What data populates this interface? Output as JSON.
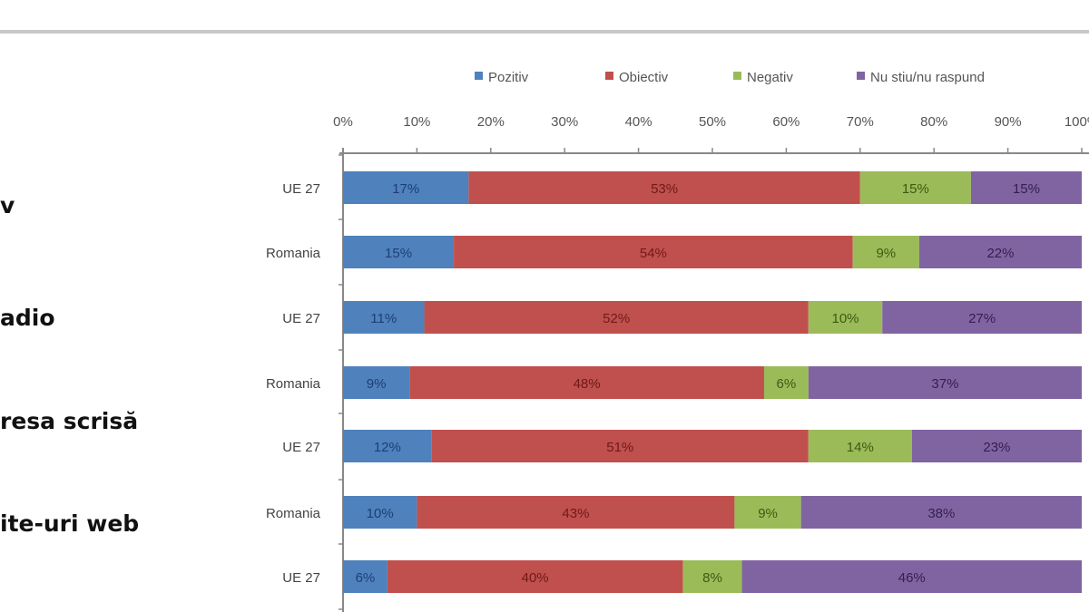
{
  "group_labels": [
    "v",
    "adio",
    "resa scrisă",
    "ite-uri web"
  ],
  "chart_data": {
    "type": "bar",
    "orientation": "horizontal",
    "stacked": true,
    "categories": [
      "UE 27",
      "Romania",
      "UE 27",
      "Romania",
      "UE 27",
      "Romania",
      "UE 27"
    ],
    "series": [
      {
        "name": "Pozitiv",
        "color": "#4f81bd",
        "label_color": "#1f3f73",
        "values": [
          17,
          15,
          11,
          9,
          12,
          10,
          6
        ]
      },
      {
        "name": "Obiectiv",
        "color": "#c0504d",
        "label_color": "#6e1a18",
        "values": [
          53,
          54,
          52,
          48,
          51,
          43,
          40
        ]
      },
      {
        "name": "Negativ",
        "color": "#9bbb59",
        "label_color": "#3d5a12",
        "values": [
          15,
          9,
          10,
          6,
          14,
          9,
          8
        ]
      },
      {
        "name": "Nu stiu/nu raspund",
        "color": "#8064a2",
        "label_color": "#34204f",
        "values": [
          15,
          22,
          27,
          37,
          23,
          38,
          46
        ]
      }
    ],
    "x_ticks": [
      "0%",
      "10%",
      "20%",
      "30%",
      "40%",
      "50%",
      "60%",
      "70%",
      "80%",
      "90%",
      "100%"
    ],
    "xlim": [
      0,
      100
    ],
    "x_axis_position": "top",
    "legend_position": "top",
    "grid": false
  }
}
